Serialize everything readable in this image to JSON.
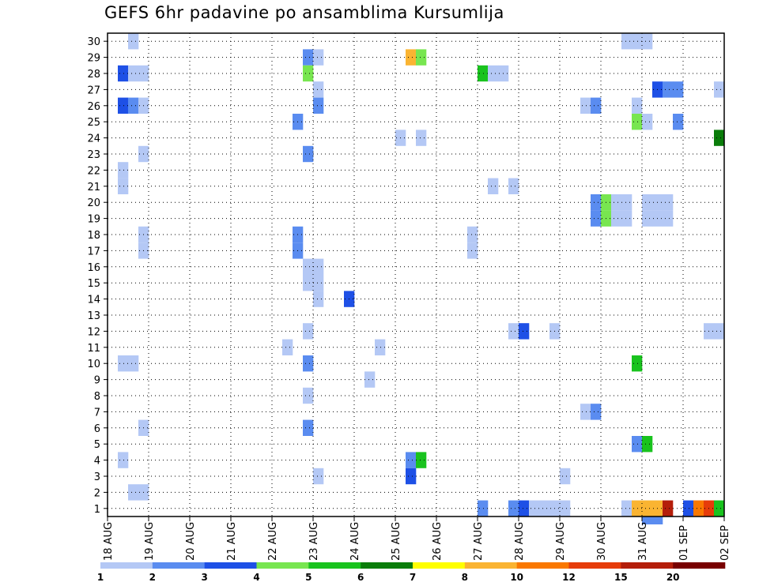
{
  "chart_data": {
    "type": "heatmap",
    "title": "GEFS 6hr padavine po ansamblima Kursumlija",
    "x_ticks": [
      "18 AUG",
      "19 AUG",
      "20 AUG",
      "21 AUG",
      "22 AUG",
      "23 AUG",
      "24 AUG",
      "25 AUG",
      "26 AUG",
      "27 AUG",
      "28 AUG",
      "29 AUG",
      "30 AUG",
      "31 AUG",
      "01 SEP",
      "02 SEP"
    ],
    "y_ticks": [
      "1",
      "2",
      "3",
      "4",
      "5",
      "6",
      "7",
      "8",
      "9",
      "10",
      "11",
      "12",
      "13",
      "14",
      "15",
      "16",
      "17",
      "18",
      "19",
      "20",
      "21",
      "22",
      "23",
      "24",
      "25",
      "26",
      "27",
      "28",
      "29",
      "30"
    ],
    "xlim": [
      0,
      60
    ],
    "ylim": [
      0.5,
      30.5
    ],
    "grid": true,
    "legend": {
      "placement": "bottom",
      "labels": [
        "1",
        "2",
        "3",
        "4",
        "5",
        "6",
        "7",
        "8",
        "10",
        "12",
        "15",
        "20"
      ],
      "colors": [
        "#b4c8f5",
        "#5a8cf0",
        "#1e50e6",
        "#78e650",
        "#19c31e",
        "#0a7d0a",
        "#ffff00",
        "#fab432",
        "#fa7800",
        "#e63c0a",
        "#b41e0a",
        "#780000"
      ]
    },
    "cells": [
      {
        "m": 30,
        "t": 2,
        "c": "#b4c8f5"
      },
      {
        "m": 30,
        "t": 50,
        "c": "#b4c8f5"
      },
      {
        "m": 30,
        "t": 51,
        "c": "#b4c8f5"
      },
      {
        "m": 30,
        "t": 52,
        "c": "#b4c8f5"
      },
      {
        "m": 29,
        "t": 19,
        "c": "#5a8cf0"
      },
      {
        "m": 29,
        "t": 20,
        "c": "#b4c8f5"
      },
      {
        "m": 29,
        "t": 29,
        "c": "#fab432"
      },
      {
        "m": 29,
        "t": 30,
        "c": "#78e650"
      },
      {
        "m": 28,
        "t": 1,
        "c": "#1e50e6"
      },
      {
        "m": 28,
        "t": 2,
        "c": "#b4c8f5"
      },
      {
        "m": 28,
        "t": 3,
        "c": "#b4c8f5"
      },
      {
        "m": 28,
        "t": 19,
        "c": "#78e650"
      },
      {
        "m": 28,
        "t": 36,
        "c": "#19c31e"
      },
      {
        "m": 28,
        "t": 37,
        "c": "#b4c8f5"
      },
      {
        "m": 28,
        "t": 38,
        "c": "#b4c8f5"
      },
      {
        "m": 27,
        "t": 20,
        "c": "#b4c8f5"
      },
      {
        "m": 27,
        "t": 53,
        "c": "#1e50e6"
      },
      {
        "m": 27,
        "t": 54,
        "c": "#5a8cf0"
      },
      {
        "m": 27,
        "t": 55,
        "c": "#5a8cf0"
      },
      {
        "m": 27,
        "t": 59,
        "c": "#b4c8f5"
      },
      {
        "m": 26,
        "t": 1,
        "c": "#1e50e6"
      },
      {
        "m": 26,
        "t": 2,
        "c": "#5a8cf0"
      },
      {
        "m": 26,
        "t": 3,
        "c": "#b4c8f5"
      },
      {
        "m": 26,
        "t": 20,
        "c": "#5a8cf0"
      },
      {
        "m": 26,
        "t": 46,
        "c": "#b4c8f5"
      },
      {
        "m": 26,
        "t": 47,
        "c": "#5a8cf0"
      },
      {
        "m": 26,
        "t": 51,
        "c": "#b4c8f5"
      },
      {
        "m": 25,
        "t": 18,
        "c": "#5a8cf0"
      },
      {
        "m": 25,
        "t": 51,
        "c": "#78e650"
      },
      {
        "m": 25,
        "t": 52,
        "c": "#b4c8f5"
      },
      {
        "m": 25,
        "t": 55,
        "c": "#5a8cf0"
      },
      {
        "m": 24,
        "t": 28,
        "c": "#b4c8f5"
      },
      {
        "m": 24,
        "t": 30,
        "c": "#b4c8f5"
      },
      {
        "m": 24,
        "t": 59,
        "c": "#0a7d0a"
      },
      {
        "m": 23,
        "t": 3,
        "c": "#b4c8f5"
      },
      {
        "m": 23,
        "t": 19,
        "c": "#5a8cf0"
      },
      {
        "m": 22,
        "t": 1,
        "c": "#b4c8f5"
      },
      {
        "m": 21,
        "t": 1,
        "c": "#b4c8f5"
      },
      {
        "m": 21,
        "t": 37,
        "c": "#b4c8f5"
      },
      {
        "m": 21,
        "t": 39,
        "c": "#b4c8f5"
      },
      {
        "m": 20,
        "t": 47,
        "c": "#5a8cf0"
      },
      {
        "m": 20,
        "t": 48,
        "c": "#78e650"
      },
      {
        "m": 20,
        "t": 49,
        "c": "#b4c8f5"
      },
      {
        "m": 20,
        "t": 50,
        "c": "#b4c8f5"
      },
      {
        "m": 20,
        "t": 52,
        "c": "#b4c8f5"
      },
      {
        "m": 20,
        "t": 53,
        "c": "#b4c8f5"
      },
      {
        "m": 20,
        "t": 54,
        "c": "#b4c8f5"
      },
      {
        "m": 19,
        "t": 47,
        "c": "#5a8cf0"
      },
      {
        "m": 19,
        "t": 48,
        "c": "#78e650"
      },
      {
        "m": 19,
        "t": 49,
        "c": "#b4c8f5"
      },
      {
        "m": 19,
        "t": 50,
        "c": "#b4c8f5"
      },
      {
        "m": 19,
        "t": 52,
        "c": "#b4c8f5"
      },
      {
        "m": 19,
        "t": 53,
        "c": "#b4c8f5"
      },
      {
        "m": 19,
        "t": 54,
        "c": "#b4c8f5"
      },
      {
        "m": 18,
        "t": 3,
        "c": "#b4c8f5"
      },
      {
        "m": 18,
        "t": 18,
        "c": "#5a8cf0"
      },
      {
        "m": 18,
        "t": 35,
        "c": "#b4c8f5"
      },
      {
        "m": 17,
        "t": 3,
        "c": "#b4c8f5"
      },
      {
        "m": 17,
        "t": 18,
        "c": "#5a8cf0"
      },
      {
        "m": 17,
        "t": 35,
        "c": "#b4c8f5"
      },
      {
        "m": 16,
        "t": 19,
        "c": "#b4c8f5"
      },
      {
        "m": 16,
        "t": 20,
        "c": "#b4c8f5"
      },
      {
        "m": 15,
        "t": 19,
        "c": "#b4c8f5"
      },
      {
        "m": 15,
        "t": 20,
        "c": "#b4c8f5"
      },
      {
        "m": 14,
        "t": 20,
        "c": "#b4c8f5"
      },
      {
        "m": 14,
        "t": 23,
        "c": "#1e50e6"
      },
      {
        "m": 12,
        "t": 19,
        "c": "#b4c8f5"
      },
      {
        "m": 12,
        "t": 39,
        "c": "#b4c8f5"
      },
      {
        "m": 12,
        "t": 40,
        "c": "#1e50e6"
      },
      {
        "m": 12,
        "t": 43,
        "c": "#b4c8f5"
      },
      {
        "m": 12,
        "t": 58,
        "c": "#b4c8f5"
      },
      {
        "m": 12,
        "t": 59,
        "c": "#b4c8f5"
      },
      {
        "m": 11,
        "t": 17,
        "c": "#b4c8f5"
      },
      {
        "m": 11,
        "t": 26,
        "c": "#b4c8f5"
      },
      {
        "m": 10,
        "t": 1,
        "c": "#b4c8f5"
      },
      {
        "m": 10,
        "t": 2,
        "c": "#b4c8f5"
      },
      {
        "m": 10,
        "t": 19,
        "c": "#5a8cf0"
      },
      {
        "m": 10,
        "t": 51,
        "c": "#19c31e"
      },
      {
        "m": 9,
        "t": 25,
        "c": "#b4c8f5"
      },
      {
        "m": 8,
        "t": 19,
        "c": "#b4c8f5"
      },
      {
        "m": 7,
        "t": 46,
        "c": "#b4c8f5"
      },
      {
        "m": 7,
        "t": 47,
        "c": "#5a8cf0"
      },
      {
        "m": 6,
        "t": 3,
        "c": "#b4c8f5"
      },
      {
        "m": 6,
        "t": 19,
        "c": "#5a8cf0"
      },
      {
        "m": 5,
        "t": 51,
        "c": "#5a8cf0"
      },
      {
        "m": 5,
        "t": 52,
        "c": "#19c31e"
      },
      {
        "m": 4,
        "t": 1,
        "c": "#b4c8f5"
      },
      {
        "m": 4,
        "t": 29,
        "c": "#5a8cf0"
      },
      {
        "m": 4,
        "t": 30,
        "c": "#19c31e"
      },
      {
        "m": 3,
        "t": 20,
        "c": "#b4c8f5"
      },
      {
        "m": 3,
        "t": 29,
        "c": "#1e50e6"
      },
      {
        "m": 3,
        "t": 44,
        "c": "#b4c8f5"
      },
      {
        "m": 2,
        "t": 2,
        "c": "#b4c8f5"
      },
      {
        "m": 2,
        "t": 3,
        "c": "#b4c8f5"
      },
      {
        "m": 1,
        "t": 36,
        "c": "#5a8cf0"
      },
      {
        "m": 1,
        "t": 39,
        "c": "#5a8cf0"
      },
      {
        "m": 1,
        "t": 40,
        "c": "#1e50e6"
      },
      {
        "m": 1,
        "t": 41,
        "c": "#b4c8f5"
      },
      {
        "m": 1,
        "t": 42,
        "c": "#b4c8f5"
      },
      {
        "m": 1,
        "t": 43,
        "c": "#b4c8f5"
      },
      {
        "m": 1,
        "t": 44,
        "c": "#b4c8f5"
      },
      {
        "m": 1,
        "t": 50,
        "c": "#b4c8f5"
      },
      {
        "m": 1,
        "t": 51,
        "c": "#fab432"
      },
      {
        "m": 1,
        "t": 52,
        "c": "#fab432"
      },
      {
        "m": 1,
        "t": 53,
        "c": "#fab432"
      },
      {
        "m": 1,
        "t": 54,
        "c": "#b41e0a"
      },
      {
        "m": 1,
        "t": 56,
        "c": "#1e50e6"
      },
      {
        "m": 1,
        "t": 57,
        "c": "#fa7800"
      },
      {
        "m": 1,
        "t": 58,
        "c": "#e63c0a"
      },
      {
        "m": 1,
        "t": 59,
        "c": "#19c31e"
      },
      {
        "m": 0,
        "t": 52,
        "c": "#5a8cf0"
      },
      {
        "m": 0,
        "t": 53,
        "c": "#5a8cf0"
      }
    ]
  }
}
